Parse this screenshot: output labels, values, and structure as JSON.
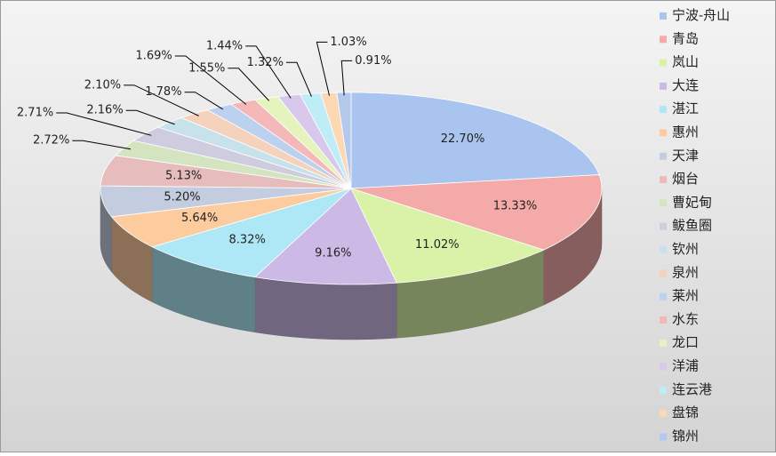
{
  "chart_data": {
    "type": "pie3d",
    "categories": [
      "宁波-舟山",
      "青岛",
      "岚山",
      "大连",
      "湛江",
      "惠州",
      "天津",
      "烟台",
      "曹妃甸",
      "鲅鱼圈",
      "钦州",
      "泉州",
      "莱州",
      "水东",
      "龙口",
      "洋浦",
      "连云港",
      "盘锦",
      "锦州"
    ],
    "values": [
      22.7,
      13.33,
      11.02,
      9.16,
      8.32,
      5.64,
      5.2,
      5.13,
      2.72,
      2.71,
      2.16,
      2.1,
      1.78,
      1.69,
      1.55,
      1.44,
      1.32,
      1.03,
      0.91
    ],
    "value_labels": [
      "22.70%",
      "13.33%",
      "11.02%",
      "9.16%",
      "8.32%",
      "5.64%",
      "5.20%",
      "5.13%",
      "2.72%",
      "2.71%",
      "2.16%",
      "2.10%",
      "1.78%",
      "1.69%",
      "1.55%",
      "1.44%",
      "1.32%",
      "1.03%",
      "0.91%"
    ],
    "colors": [
      "#a9c4ef",
      "#f5aaaa",
      "#d9f2a8",
      "#cdb9e6",
      "#aee8f7",
      "#fccb9e",
      "#c4cde0",
      "#e6bcbc",
      "#d4e4c0",
      "#d0cce0",
      "#c8e2ec",
      "#f5d2bc",
      "#bcd0f0",
      "#f5b8b8",
      "#e4f4bc",
      "#d8c8ec",
      "#c0ecf8",
      "#fcd8b4",
      "#b4c8ec"
    ],
    "legend": "right"
  }
}
